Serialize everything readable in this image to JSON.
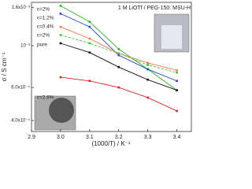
{
  "chart_data": {
    "type": "line",
    "annotation": "1 M LiOTf / PEG-150: MSU-H",
    "x_label": "(1000/T) / K⁻¹",
    "y_label": "σ / S cm⁻¹",
    "x": [
      3.0,
      3.1,
      3.2,
      3.3,
      3.4
    ],
    "xlim": [
      2.9,
      3.45
    ],
    "xticks": [
      2.9,
      {
        "value": 3.0,
        "label": "3.0"
      },
      3.1,
      3.2,
      3.3,
      3.4
    ],
    "ylim": [
      0.00035,
      0.0017
    ],
    "yticks": [
      {
        "value": 0.0004,
        "label": "4.0x10⁻⁴"
      },
      {
        "value": 0.0006,
        "label": "6.0x10⁻⁴"
      },
      {
        "value": 0.001,
        "label": "10⁻³"
      },
      {
        "value": 0.0016,
        "label": "1.6x10⁻³"
      }
    ],
    "log_y": true,
    "series": [
      {
        "name": "ε=2%",
        "color": "#22bb22",
        "dashed": false,
        "values": [
          0.00163,
          0.00134,
          0.00096,
          0.00075,
          0.00058
        ]
      },
      {
        "name": "ε=1.2%",
        "color": "#2244cc",
        "dashed": false,
        "values": [
          0.00148,
          0.00126,
          0.00089,
          0.00075,
          0.00065
        ]
      },
      {
        "name": "ε=0.4%",
        "color": "#ff7744",
        "dashed": false,
        "values": [
          0.00126,
          0.00109,
          0.00091,
          0.00081,
          0.00074
        ]
      },
      {
        "name": "ε=2%",
        "color": "#33cc33",
        "dashed": true,
        "values": [
          0.00114,
          0.00103,
          0.00091,
          0.00079,
          0.00072
        ]
      },
      {
        "name": "pure",
        "color": "#111111",
        "dashed": false,
        "values": [
          0.00103,
          0.00092,
          0.00077,
          0.00066,
          0.00058
        ]
      },
      {
        "name": "ε=2.8%",
        "color": "#dd2222",
        "dashed": false,
        "values": [
          0.00068,
          0.00065,
          0.0006,
          0.00053,
          0.00045
        ]
      }
    ]
  }
}
